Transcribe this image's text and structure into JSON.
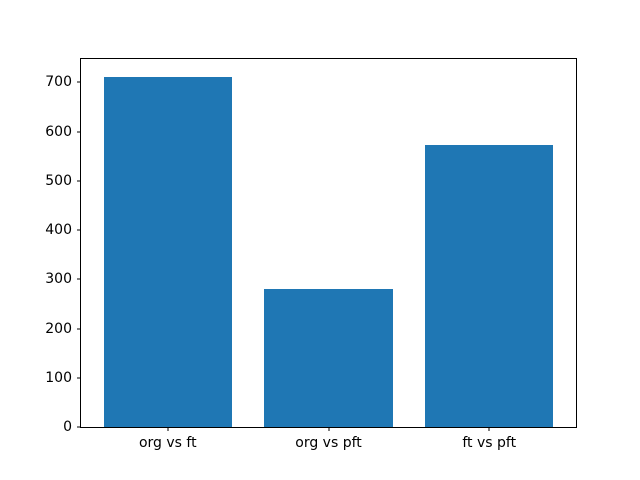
{
  "chart_data": {
    "type": "bar",
    "categories": [
      "org vs ft",
      "org vs pft",
      "ft vs pft"
    ],
    "values": [
      712,
      281,
      573
    ],
    "title": "",
    "xlabel": "",
    "ylabel": "",
    "xlim": [
      -0.54,
      2.54
    ],
    "ylim": [
      0,
      747.6
    ],
    "yticks": [
      0,
      100,
      200,
      300,
      400,
      500,
      600,
      700
    ],
    "bar_width": 0.8,
    "grid": false,
    "legend": null
  },
  "colors": {
    "bar": "#1f77b4",
    "background": "#ffffff",
    "spine": "#000000",
    "text": "#000000"
  }
}
